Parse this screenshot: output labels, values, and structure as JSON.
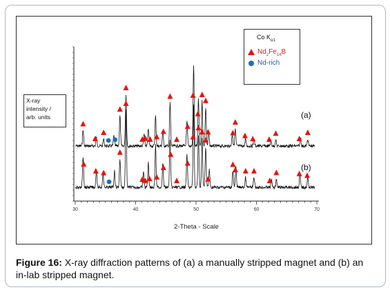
{
  "chart_data": {
    "type": "line",
    "xlabel": "2-Theta - Scale",
    "ylabel_lines": [
      "X-ray",
      "intensity /",
      "arb. units"
    ],
    "xlim": [
      30,
      70
    ],
    "x_ticks": [
      "30",
      "40",
      "50",
      "60",
      "70"
    ],
    "legend_title": "Co K",
    "legend_title_sub": "α1",
    "legend": [
      {
        "main": "Nd",
        "sub1": "2",
        "mid": "Fe",
        "sub2": "14",
        "tail": "B",
        "marker": "triangle",
        "color": "#e8120c"
      },
      {
        "label": "Nd-rich",
        "marker": "circle",
        "color": "#1a6fc2"
      }
    ],
    "series": [
      {
        "name": "(a)",
        "peaks": [
          [
            31.3,
            0.18
          ],
          [
            33.5,
            0.1
          ],
          [
            34.7,
            0.08
          ],
          [
            36.4,
            0.12
          ],
          [
            37.4,
            0.35
          ],
          [
            38.4,
            0.6
          ],
          [
            41.4,
            0.14
          ],
          [
            42.1,
            0.2
          ],
          [
            43.3,
            0.35
          ],
          [
            44.5,
            0.17
          ],
          [
            45.7,
            0.5
          ],
          [
            48.5,
            0.28
          ],
          [
            49.6,
            0.95
          ],
          [
            50.4,
            0.55
          ],
          [
            51.0,
            0.52
          ],
          [
            51.6,
            0.45
          ],
          [
            52.1,
            0.16
          ],
          [
            56.0,
            0.14
          ],
          [
            56.5,
            0.2
          ],
          [
            58.2,
            0.08
          ],
          [
            59.6,
            0.08
          ],
          [
            62.4,
            0.06
          ],
          [
            63.2,
            0.07
          ],
          [
            67.3,
            0.1
          ],
          [
            68.5,
            0.08
          ]
        ],
        "triangles_x": [
          31.3,
          33.3,
          34.7,
          37.4,
          38.4,
          41.1,
          41.6,
          42.4,
          43.5,
          44.6,
          45.7,
          46.8,
          48.6,
          49.5,
          50.3,
          51.0,
          51.6,
          52.0,
          56.1,
          56.5,
          58.1,
          59.4,
          62.1,
          63.2,
          67.1,
          68.5
        ],
        "circles_x": [
          35.5,
          36.6
        ]
      },
      {
        "name": "(b)",
        "peaks": [
          [
            31.3,
            0.38
          ],
          [
            33.5,
            0.22
          ],
          [
            34.6,
            0.18
          ],
          [
            36.5,
            0.2
          ],
          [
            37.4,
            0.35
          ],
          [
            38.4,
            0.95
          ],
          [
            41.3,
            0.2
          ],
          [
            42.1,
            0.3
          ],
          [
            43.3,
            0.52
          ],
          [
            44.5,
            0.3
          ],
          [
            45.7,
            0.6
          ],
          [
            48.5,
            0.4
          ],
          [
            49.6,
            1.0
          ],
          [
            50.4,
            0.65
          ],
          [
            51.0,
            0.6
          ],
          [
            51.6,
            0.5
          ],
          [
            52.2,
            0.22
          ],
          [
            56.1,
            0.2
          ],
          [
            56.6,
            0.25
          ],
          [
            58.2,
            0.12
          ],
          [
            59.6,
            0.12
          ],
          [
            62.5,
            0.1
          ],
          [
            63.3,
            0.1
          ],
          [
            67.2,
            0.16
          ],
          [
            68.5,
            0.12
          ]
        ],
        "triangles_x": [
          31.4,
          33.4,
          34.7,
          37.4,
          38.4,
          41.1,
          41.6,
          42.3,
          43.5,
          44.6,
          45.8,
          46.8,
          48.6,
          49.5,
          50.4,
          51.0,
          51.6,
          52.0,
          56.1,
          56.5,
          58.2,
          59.6,
          62.2,
          63.3,
          67.1,
          68.4
        ],
        "circles_x": [
          35.6
        ]
      }
    ]
  },
  "labels": {
    "a": "(a)",
    "b": "(b)"
  },
  "caption": {
    "bold": "Figure 16:",
    "text": " X-ray diffraction patterns of (a) a manually stripped magnet and (b) an in-lab stripped magnet."
  }
}
